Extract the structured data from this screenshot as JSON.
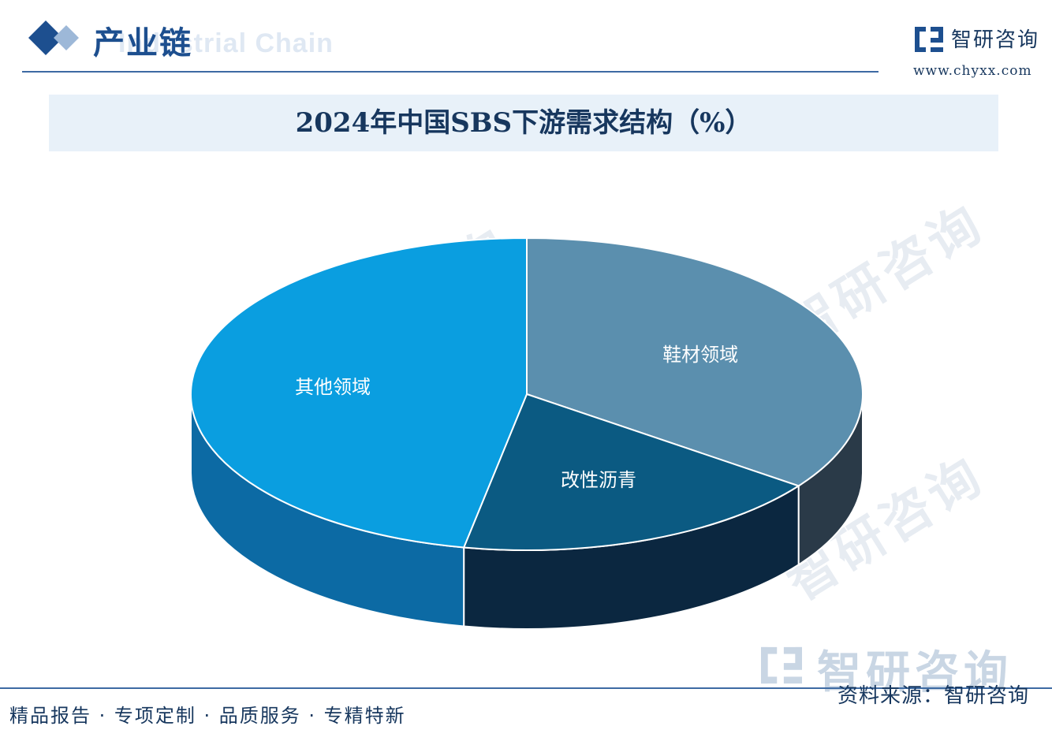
{
  "header": {
    "section_title": "产业链",
    "section_subtitle": "Industrial Chain",
    "brand_name": "智研咨询",
    "brand_url": "www.chyxx.com"
  },
  "colors": {
    "primary": "#1d4f8f",
    "title_band": "#e8f1f9",
    "slice_other_top": "#0a9ee0",
    "slice_shoe_top": "#5b8fae",
    "slice_asphalt_top": "#0b5a82"
  },
  "chart_data": {
    "type": "pie",
    "title": "2024年中国SBS下游需求结构（%）",
    "slices": [
      {
        "label": "鞋材领域",
        "value": 35
      },
      {
        "label": "改性沥青",
        "value": 18
      },
      {
        "label": "其他领域",
        "value": 47
      }
    ],
    "style": "3d"
  },
  "watermark": {
    "text": "智研咨询"
  },
  "footer": {
    "slogan": "精品报告 · 专项定制 · 品质服务 · 专精特新",
    "brand_big": "智研咨询",
    "source": "资料来源：智研咨询"
  }
}
